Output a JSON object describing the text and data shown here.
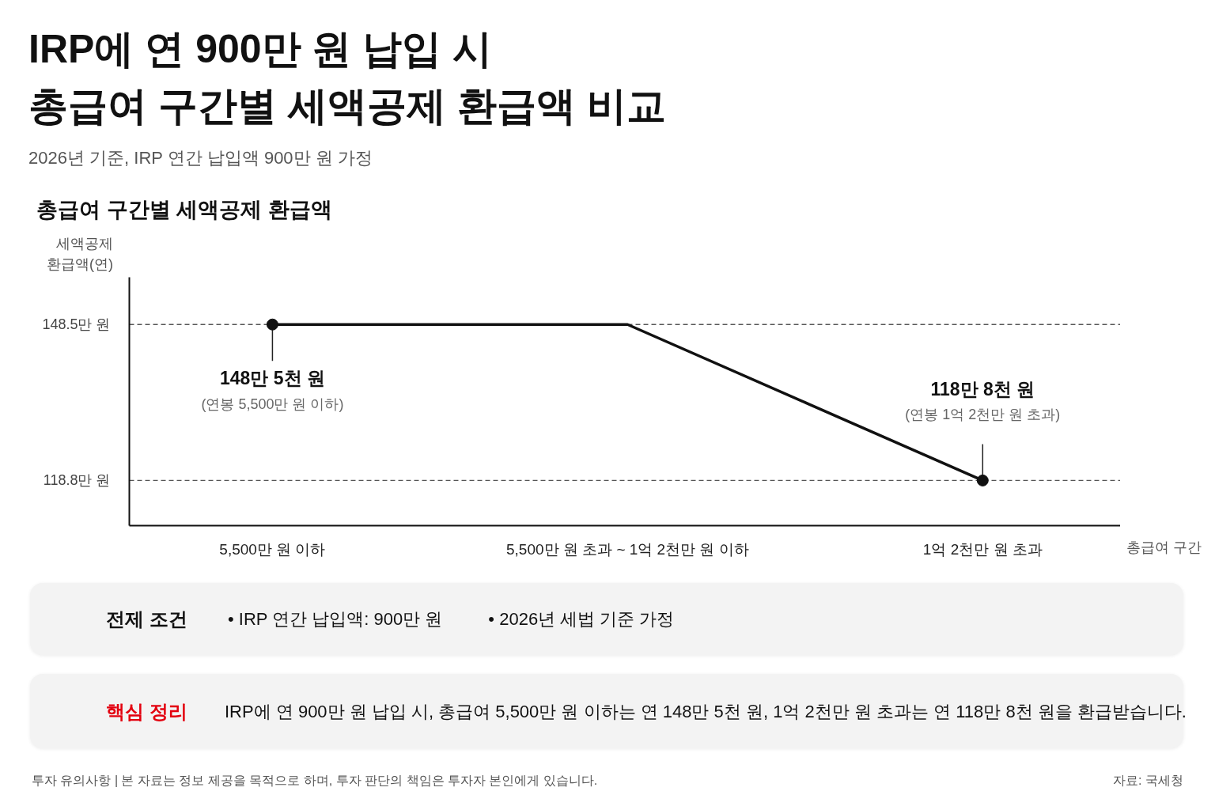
{
  "chart_data": {
    "type": "line",
    "title": "IRP에 연 900만 원 납입 시\n총급여 구간별 세액공제 환급액 비교",
    "subtitle": "2026년 기준, IRP 연간 납입액 900만 원 가정",
    "xlabel": "총급여 구간",
    "ylabel": "세액공제\n환급액(연)",
    "categories": [
      "5,500만 원 이하",
      "5,500만 원 초과 ~ 1억 2천만 원 이하",
      "1억 2천만 원 초과"
    ],
    "series": [
      {
        "color": "#111111",
        "line_style": "solid",
        "values": [
          148.5,
          148.5,
          118.8
        ]
      },
      {
        "type": "scatter",
        "color": "#111111",
        "marker": "circle",
        "values": [
          148.5,
          null,
          118.8
        ]
      }
    ],
    "ylim": [
      110.2,
      157.5
    ],
    "yticks": [
      {
        "value": 148.5,
        "label": "148.5만 원"
      },
      {
        "value": 118.8,
        "label": "118.8만 원"
      }
    ],
    "ref_lines": [
      {
        "axis": "y",
        "value": 148.5,
        "color": "#555555",
        "line_style": "dashed"
      },
      {
        "axis": "y",
        "value": 118.8,
        "color": "#555555",
        "line_style": "dashed"
      }
    ],
    "annotations": [
      "총급여 구간별 세액공제 환급액",
      {
        "text": "148만 5천 원\n(연봉 5,500만 원 이하)",
        "x": "5,500만 원 이하",
        "y": 148.5
      },
      {
        "text": "118만 8천 원\n(연봉 1억 2천만 원 초과)",
        "x": "1억 2천만 원 초과",
        "y": 118.8
      },
      "전제 조건",
      "• IRP 연간 납입액: 900만 원",
      "• 2026년 세법 기준 가정",
      "핵심 정리",
      "IRP에 연 900만 원 납입 시, 총급여 5,500만 원 이하는 연 148만 5천 원, 1억 2천만 원 초과는 연 118만 8천 원을 환급받습니다.",
      "투자 유의사항 | 본 자료는 정보 제공을 목적으로 하며, 투자 판단의 책임은 투자자 본인에게 있습니다.",
      "자료: 국세청"
    ]
  }
}
